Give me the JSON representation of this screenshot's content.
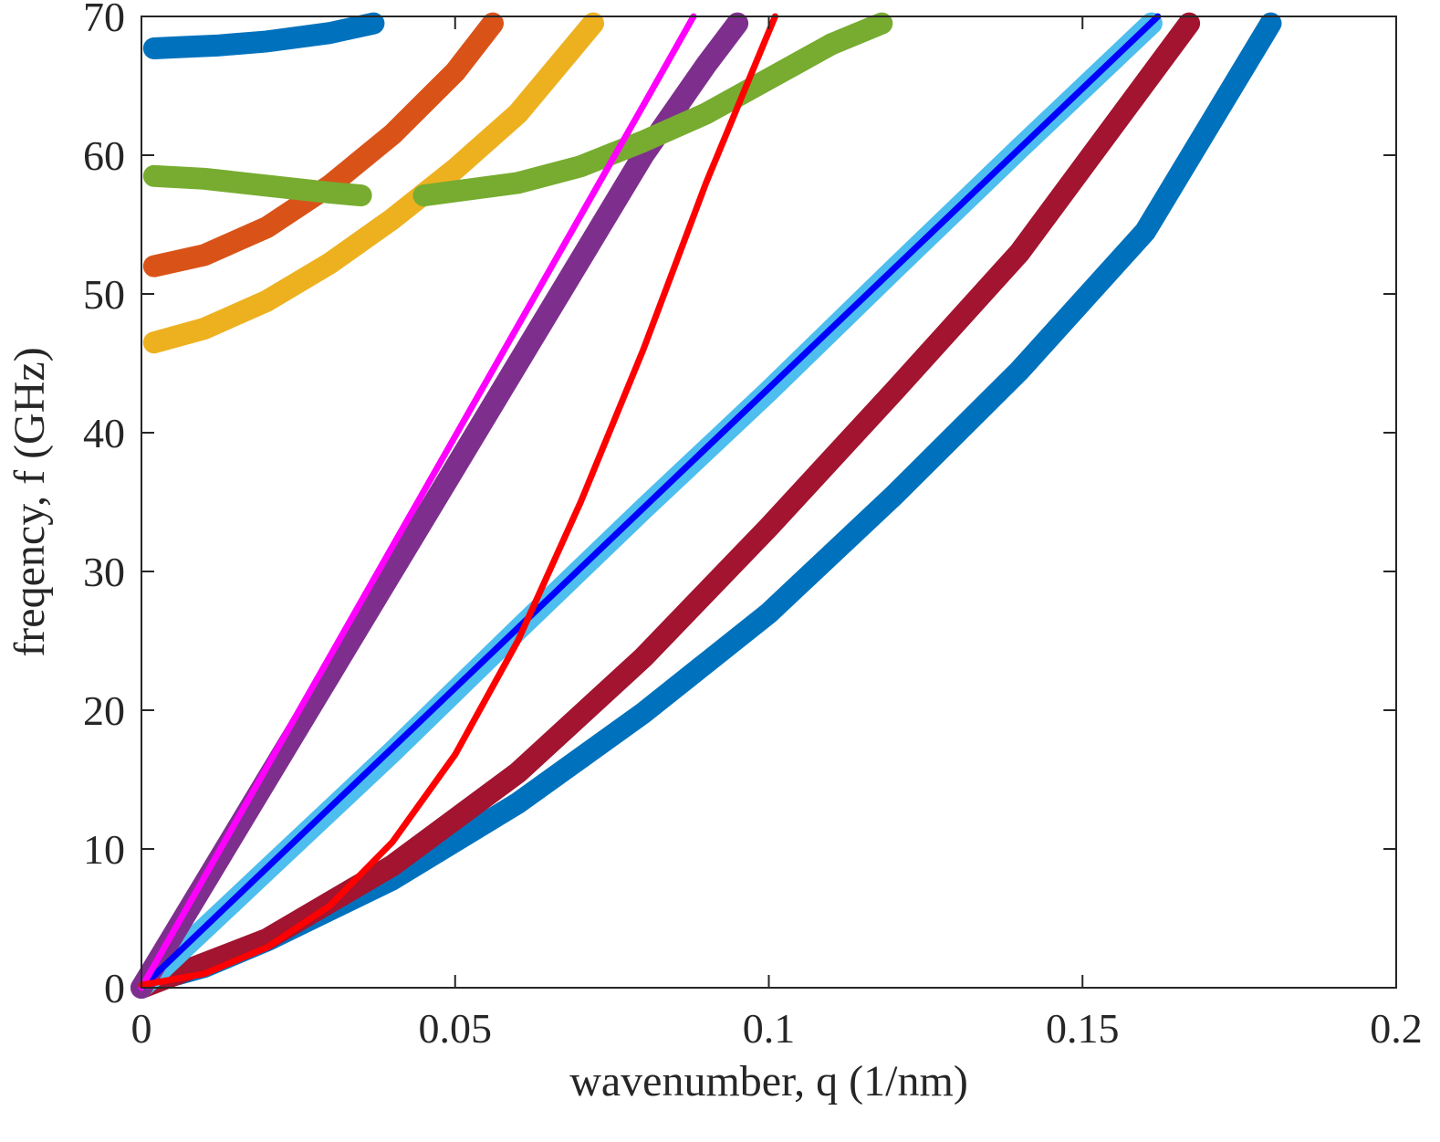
{
  "chart_data": {
    "type": "line",
    "xlabel": "wavenumber, q (1/nm)",
    "ylabel": "freqency, f (GHz)",
    "xlim": [
      0,
      0.2
    ],
    "ylim": [
      0,
      70
    ],
    "x_ticks": [
      "0",
      "0.05",
      "0.1",
      "0.15",
      "0.2"
    ],
    "y_ticks": [
      "0",
      "10",
      "20",
      "30",
      "40",
      "50",
      "60",
      "70"
    ],
    "grid": false,
    "legend": "none",
    "series": [
      {
        "style": "dots",
        "color": "#0072bd",
        "points": [
          [
            0.002,
            0.5
          ],
          [
            0.01,
            1.5
          ],
          [
            0.02,
            3.4
          ],
          [
            0.04,
            7.8
          ],
          [
            0.06,
            13.3
          ],
          [
            0.08,
            19.8
          ],
          [
            0.1,
            27.0
          ],
          [
            0.12,
            35.5
          ],
          [
            0.14,
            44.5
          ],
          [
            0.16,
            54.5
          ],
          [
            0.18,
            69.5
          ]
        ]
      },
      {
        "style": "dots",
        "color": "#a2142f",
        "points": [
          [
            0.0,
            0.0
          ],
          [
            0.02,
            3.5
          ],
          [
            0.04,
            8.8
          ],
          [
            0.06,
            15.5
          ],
          [
            0.08,
            23.8
          ],
          [
            0.1,
            33.2
          ],
          [
            0.12,
            43.0
          ],
          [
            0.14,
            53.0
          ],
          [
            0.167,
            69.5
          ]
        ]
      },
      {
        "style": "dots",
        "color": "#4dbeee",
        "points": [
          [
            0.0,
            0.0
          ],
          [
            0.02,
            8.5
          ],
          [
            0.04,
            17.0
          ],
          [
            0.06,
            25.8
          ],
          [
            0.08,
            34.5
          ],
          [
            0.1,
            43.0
          ],
          [
            0.12,
            51.8
          ],
          [
            0.14,
            60.5
          ],
          [
            0.161,
            69.5
          ]
        ]
      },
      {
        "style": "dots",
        "color": "#7e2f8e",
        "points": [
          [
            0.0,
            0.0
          ],
          [
            0.01,
            7.5
          ],
          [
            0.02,
            15.0
          ],
          [
            0.03,
            22.5
          ],
          [
            0.04,
            30.0
          ],
          [
            0.05,
            37.5
          ],
          [
            0.06,
            45.0
          ],
          [
            0.07,
            52.5
          ],
          [
            0.08,
            60.0
          ],
          [
            0.09,
            66.5
          ],
          [
            0.095,
            69.5
          ]
        ]
      },
      {
        "style": "dots",
        "color": "#d95319",
        "points": [
          [
            0.002,
            52.0
          ],
          [
            0.01,
            52.8
          ],
          [
            0.02,
            54.8
          ],
          [
            0.03,
            57.8
          ],
          [
            0.04,
            61.5
          ],
          [
            0.05,
            66.0
          ],
          [
            0.056,
            69.5
          ]
        ]
      },
      {
        "style": "dots",
        "color": "#edb120",
        "points": [
          [
            0.002,
            46.5
          ],
          [
            0.01,
            47.5
          ],
          [
            0.02,
            49.5
          ],
          [
            0.03,
            52.2
          ],
          [
            0.04,
            55.4
          ],
          [
            0.05,
            59.0
          ],
          [
            0.06,
            63.0
          ],
          [
            0.072,
            69.5
          ]
        ]
      },
      {
        "style": "dots",
        "color": "#77ac30",
        "points": [
          [
            0.002,
            58.5
          ],
          [
            0.01,
            58.3
          ],
          [
            0.02,
            57.8
          ],
          [
            0.03,
            57.3
          ],
          [
            0.035,
            57.1
          ]
        ]
      },
      {
        "style": "dots",
        "color": "#77ac30",
        "points": [
          [
            0.045,
            57.1
          ],
          [
            0.06,
            58.0
          ],
          [
            0.07,
            59.2
          ],
          [
            0.08,
            61.0
          ],
          [
            0.09,
            63.0
          ],
          [
            0.1,
            65.5
          ],
          [
            0.11,
            68.0
          ],
          [
            0.118,
            69.5
          ]
        ]
      },
      {
        "style": "dots",
        "color": "#0072bd",
        "points": [
          [
            0.002,
            67.7
          ],
          [
            0.007,
            67.8
          ],
          [
            0.012,
            67.9
          ],
          [
            0.02,
            68.2
          ],
          [
            0.03,
            68.8
          ],
          [
            0.037,
            69.5
          ]
        ]
      },
      {
        "style": "line",
        "color": "#0000ff",
        "points": [
          [
            0.0,
            0.0
          ],
          [
            0.162,
            70.0
          ]
        ]
      },
      {
        "style": "line",
        "color": "#ff00ff",
        "points": [
          [
            0.0,
            0.0
          ],
          [
            0.01,
            7.95
          ],
          [
            0.02,
            15.9
          ],
          [
            0.03,
            23.85
          ],
          [
            0.04,
            31.8
          ],
          [
            0.05,
            39.75
          ],
          [
            0.06,
            47.7
          ],
          [
            0.07,
            55.65
          ],
          [
            0.08,
            63.6
          ],
          [
            0.088,
            70.0
          ]
        ]
      },
      {
        "style": "line",
        "color": "#ff0000",
        "points": [
          [
            0.0,
            0.2
          ],
          [
            0.01,
            1.0
          ],
          [
            0.02,
            2.9
          ],
          [
            0.03,
            5.9
          ],
          [
            0.04,
            10.5
          ],
          [
            0.05,
            16.8
          ],
          [
            0.06,
            25.0
          ],
          [
            0.07,
            35.0
          ],
          [
            0.08,
            46.0
          ],
          [
            0.09,
            58.0
          ],
          [
            0.101,
            70.0
          ]
        ]
      }
    ]
  }
}
